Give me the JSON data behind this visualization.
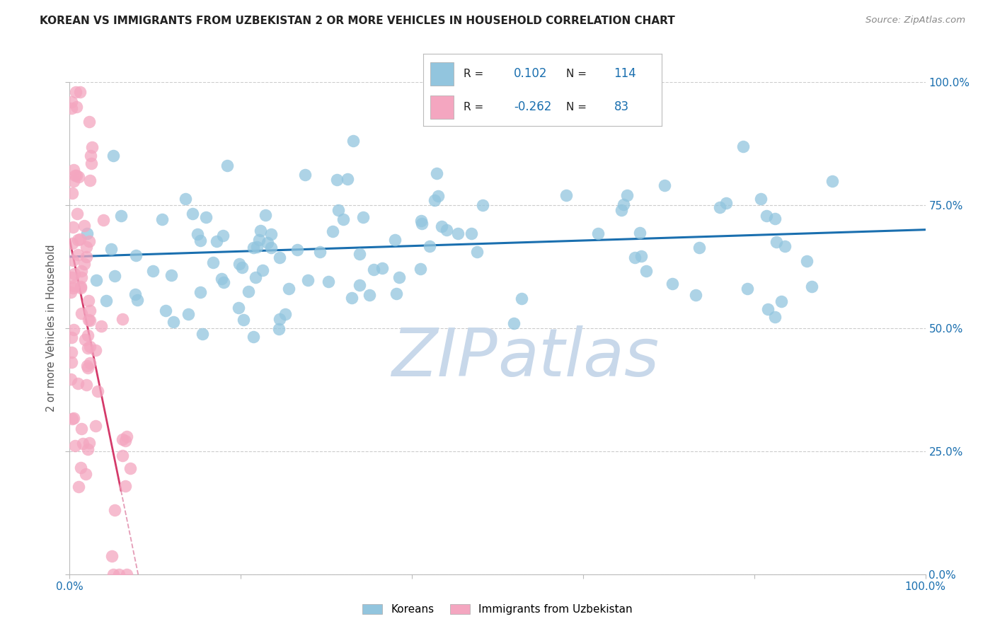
{
  "title": "KOREAN VS IMMIGRANTS FROM UZBEKISTAN 2 OR MORE VEHICLES IN HOUSEHOLD CORRELATION CHART",
  "source": "Source: ZipAtlas.com",
  "ylabel": "2 or more Vehicles in Household",
  "ytick_labels": [
    "0.0%",
    "25.0%",
    "50.0%",
    "75.0%",
    "100.0%"
  ],
  "ytick_values": [
    0.0,
    0.25,
    0.5,
    0.75,
    1.0
  ],
  "xtick_labels": [
    "0.0%",
    "",
    "",
    "",
    "",
    "100.0%"
  ],
  "xtick_values": [
    0.0,
    0.2,
    0.4,
    0.6,
    0.8,
    1.0
  ],
  "xlim": [
    0.0,
    1.0
  ],
  "ylim": [
    0.0,
    1.0
  ],
  "legend_label1": "Koreans",
  "legend_label2": "Immigrants from Uzbekistan",
  "r1": 0.102,
  "n1": 114,
  "r2": -0.262,
  "n2": 83,
  "blue_scatter_color": "#92c5de",
  "pink_scatter_color": "#f4a6c0",
  "blue_line_color": "#1a6faf",
  "pink_line_color": "#d43a6a",
  "pink_dash_color": "#e08aaa",
  "title_color": "#222222",
  "source_color": "#888888",
  "watermark_color": "#c8d8ea",
  "grid_color": "#cccccc",
  "legend_box_color": "#e8e8e8",
  "r_label_color": "#222222",
  "rn_value_color": "#1a6faf"
}
